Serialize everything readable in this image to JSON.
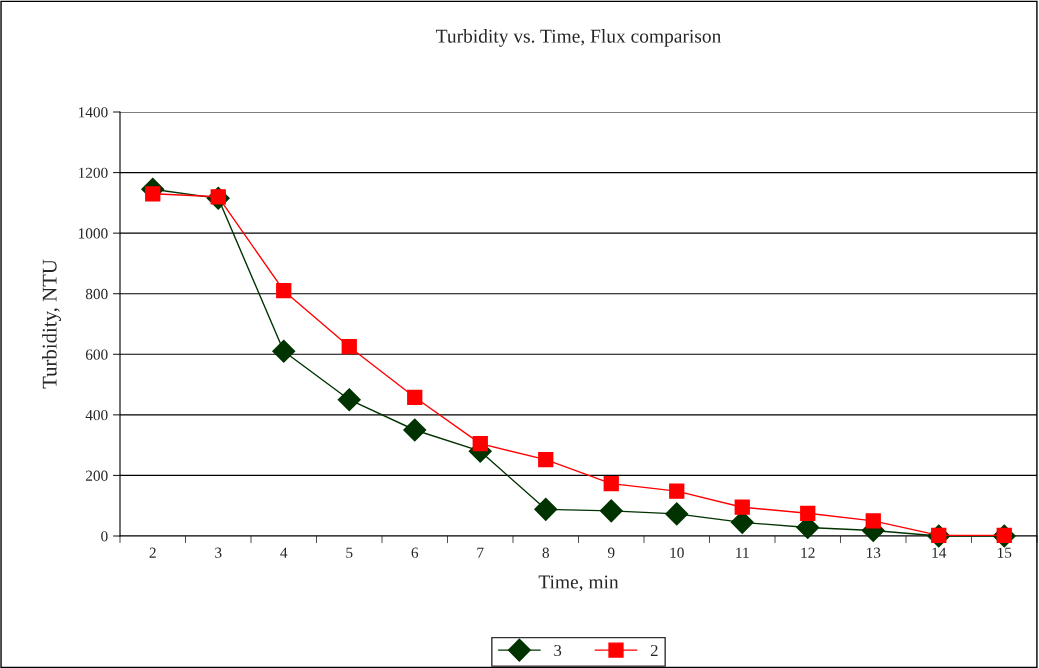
{
  "chart_data": {
    "type": "line",
    "title": "Turbidity vs. Time, Flux comparison",
    "xlabel": "Time, min",
    "ylabel": "Turbidity, NTU",
    "categories": [
      "2",
      "3",
      "4",
      "5",
      "6",
      "7",
      "8",
      "9",
      "10",
      "11",
      "12",
      "13",
      "14",
      "15"
    ],
    "series": [
      {
        "name": "3",
        "color": "#003300",
        "marker": "diamond",
        "values": [
          1145,
          1115,
          610,
          450,
          350,
          280,
          88,
          83,
          73,
          45,
          28,
          18,
          0,
          0
        ]
      },
      {
        "name": "2",
        "color": "#ff0000",
        "marker": "square",
        "values": [
          1130,
          1120,
          810,
          625,
          458,
          305,
          252,
          173,
          148,
          95,
          75,
          50,
          2,
          2
        ]
      }
    ],
    "ylim": [
      0,
      1400
    ],
    "yticks": [
      0,
      200,
      400,
      600,
      800,
      1000,
      1200,
      1400
    ],
    "grid": "y",
    "legend": "bottom"
  }
}
